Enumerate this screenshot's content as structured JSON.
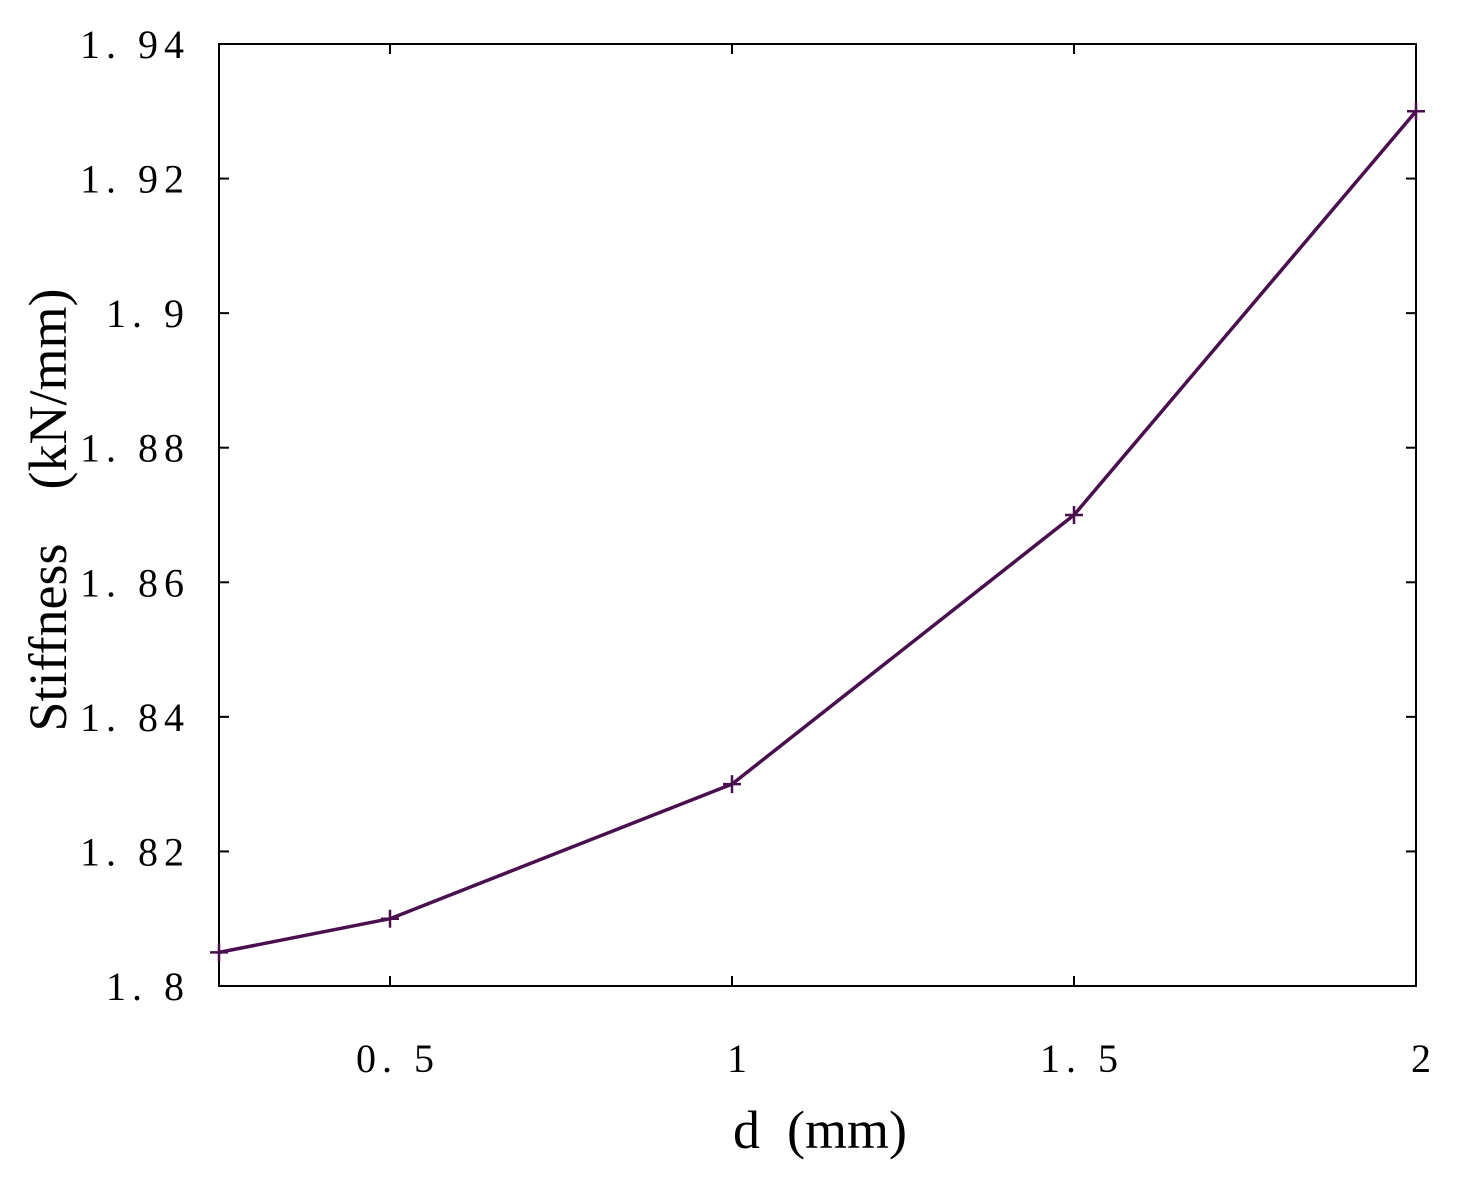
{
  "chart_data": {
    "type": "line",
    "title": "",
    "xlabel": "d  (mm)",
    "ylabel": "Stiffness    (kN/mm)",
    "xlim": [
      0.25,
      2.0
    ],
    "ylim": [
      1.8,
      1.94
    ],
    "x_ticks": [
      0.5,
      1,
      1.5,
      2
    ],
    "x_tick_labels": [
      "0. 5",
      "1",
      "1. 5",
      "2"
    ],
    "y_ticks": [
      1.8,
      1.82,
      1.84,
      1.86,
      1.88,
      1.9,
      1.92,
      1.94
    ],
    "y_tick_labels": [
      "1. 8",
      "1. 82",
      "1. 84",
      "1. 86",
      "1. 88",
      "1. 9",
      "1. 92",
      "1. 94"
    ],
    "grid": false,
    "legend": "none",
    "series": [
      {
        "color": "#4a0f4f",
        "marker": "plus",
        "x": [
          0.25,
          0.5,
          1.0,
          1.5,
          2.0
        ],
        "y": [
          1.805,
          1.81,
          1.83,
          1.87,
          1.93
        ]
      }
    ]
  }
}
